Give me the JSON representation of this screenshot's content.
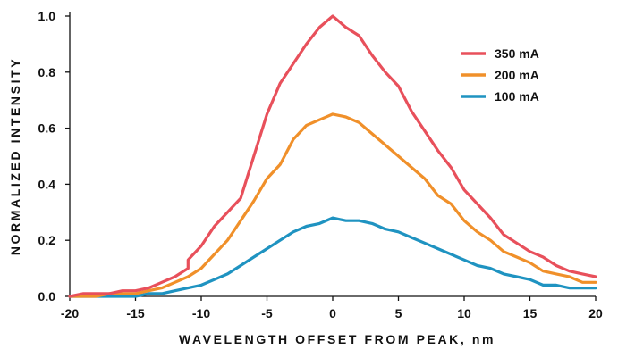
{
  "chart_data": {
    "type": "line",
    "title": "",
    "xlabel": "WAVELENGTH OFFSET FROM PEAK, nm",
    "ylabel": "NORMALIZED INTENSITY",
    "xlim": [
      -20,
      20
    ],
    "ylim": [
      0,
      1.0
    ],
    "x_ticks": [
      -20,
      -15,
      -10,
      -5,
      0,
      5,
      10,
      15,
      20
    ],
    "x_tick_labels": [
      "-20",
      "-15",
      "-10",
      "-5",
      "0",
      "5",
      "10",
      "15",
      "20"
    ],
    "y_ticks": [
      0,
      0.2,
      0.4,
      0.6,
      0.8,
      1.0
    ],
    "y_tick_labels": [
      "0.0",
      "0.2",
      "0.4",
      "0.6",
      "0.8",
      "1.0"
    ],
    "grid": false,
    "legend_position": "top-right",
    "series": [
      {
        "name": "350 mA",
        "color": "#e8505b",
        "x": [
          -20,
          -19,
          -18,
          -17,
          -16,
          -15,
          -14,
          -13,
          -12,
          -11,
          -11,
          -10,
          -9,
          -8,
          -7,
          -6,
          -5,
          -4,
          -3,
          -2,
          -1,
          0,
          1,
          2,
          3,
          4,
          5,
          6,
          7,
          8,
          9,
          10,
          11,
          12,
          13,
          14,
          15,
          16,
          17,
          18,
          19,
          20
        ],
        "y": [
          0.0,
          0.01,
          0.01,
          0.01,
          0.02,
          0.02,
          0.03,
          0.05,
          0.07,
          0.1,
          0.13,
          0.18,
          0.25,
          0.3,
          0.35,
          0.5,
          0.65,
          0.76,
          0.83,
          0.9,
          0.96,
          1.0,
          0.96,
          0.93,
          0.86,
          0.8,
          0.75,
          0.66,
          0.59,
          0.52,
          0.46,
          0.38,
          0.33,
          0.28,
          0.22,
          0.19,
          0.16,
          0.14,
          0.11,
          0.09,
          0.08,
          0.07
        ]
      },
      {
        "name": "200 mA",
        "color": "#f0902a",
        "x": [
          -20,
          -19,
          -18,
          -17,
          -16,
          -15,
          -14,
          -13,
          -12,
          -11,
          -10,
          -9,
          -8,
          -7,
          -6,
          -5,
          -4,
          -3,
          -2,
          -1,
          0,
          1,
          2,
          3,
          4,
          5,
          6,
          7,
          8,
          9,
          10,
          11,
          12,
          13,
          14,
          15,
          16,
          17,
          18,
          19,
          20
        ],
        "y": [
          0.0,
          0.0,
          0.0,
          0.01,
          0.01,
          0.01,
          0.02,
          0.03,
          0.05,
          0.07,
          0.1,
          0.15,
          0.2,
          0.27,
          0.34,
          0.42,
          0.47,
          0.56,
          0.61,
          0.63,
          0.65,
          0.64,
          0.62,
          0.58,
          0.54,
          0.5,
          0.46,
          0.42,
          0.36,
          0.33,
          0.27,
          0.23,
          0.2,
          0.16,
          0.14,
          0.12,
          0.09,
          0.08,
          0.07,
          0.05,
          0.05
        ]
      },
      {
        "name": "100 mA",
        "color": "#1f93c1",
        "x": [
          -20,
          -19,
          -18,
          -17,
          -16,
          -15,
          -14,
          -13,
          -12,
          -11,
          -10,
          -9,
          -8,
          -7,
          -6,
          -5,
          -4,
          -3,
          -2,
          -1,
          0,
          1,
          2,
          3,
          4,
          5,
          6,
          7,
          8,
          9,
          10,
          11,
          12,
          13,
          14,
          15,
          16,
          17,
          18,
          19,
          20
        ],
        "y": [
          0.0,
          0.0,
          0.0,
          0.0,
          0.0,
          0.0,
          0.01,
          0.01,
          0.02,
          0.03,
          0.04,
          0.06,
          0.08,
          0.11,
          0.14,
          0.17,
          0.2,
          0.23,
          0.25,
          0.26,
          0.28,
          0.27,
          0.27,
          0.26,
          0.24,
          0.23,
          0.21,
          0.19,
          0.17,
          0.15,
          0.13,
          0.11,
          0.1,
          0.08,
          0.07,
          0.06,
          0.04,
          0.04,
          0.03,
          0.03,
          0.03
        ]
      }
    ]
  }
}
